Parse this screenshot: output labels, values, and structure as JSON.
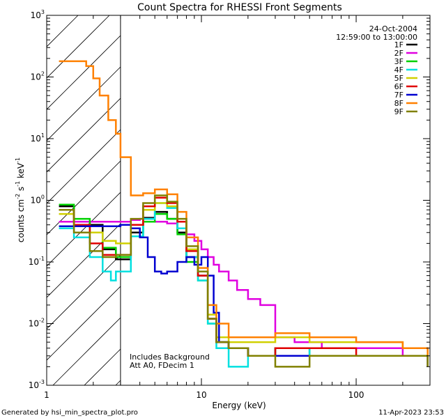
{
  "chart_data": {
    "type": "line",
    "title": "Count Spectra for RHESSI Front Segments",
    "xlabel": "Energy (keV)",
    "ylabel_parts": [
      "counts cm",
      "-2",
      " s",
      "-1",
      " keV",
      "-1"
    ],
    "xscale": "log",
    "yscale": "log",
    "xlim": [
      1,
      300
    ],
    "ylim": [
      0.001,
      1000
    ],
    "x_ticks": [
      {
        "v": 1,
        "label": "1"
      },
      {
        "v": 10,
        "label": "10"
      },
      {
        "v": 100,
        "label": "100"
      }
    ],
    "y_ticks": [
      {
        "v": 0.001,
        "base": "10",
        "exp": "-3"
      },
      {
        "v": 0.01,
        "base": "10",
        "exp": "-2"
      },
      {
        "v": 0.1,
        "base": "10",
        "exp": "-1"
      },
      {
        "v": 1,
        "base": "10",
        "exp": "0"
      },
      {
        "v": 10,
        "base": "10",
        "exp": "1"
      },
      {
        "v": 100,
        "base": "10",
        "exp": "2"
      },
      {
        "v": 1000,
        "base": "10",
        "exp": "3"
      }
    ],
    "hatched_region": {
      "x_from": 1,
      "x_to": 3
    },
    "legend": {
      "position": "top-right",
      "date": "24-Oct-2004",
      "time_range": "12:59:00 to 13:00:00"
    },
    "annotations": [
      "Includes Background",
      "Att A0, FDecim 1"
    ],
    "series": [
      {
        "name": "1F",
        "color": "#000000",
        "x": [
          1.2,
          1.5,
          1.9,
          2.3,
          2.8,
          3.5,
          4.2,
          5,
          6,
          7,
          8,
          9.5,
          11,
          12.5,
          15,
          20,
          30,
          50,
          100,
          200,
          290
        ],
        "y": [
          0.8,
          0.45,
          0.4,
          0.16,
          0.11,
          0.3,
          0.52,
          0.65,
          0.5,
          0.3,
          0.12,
          0.06,
          0.012,
          0.005,
          0.004,
          0.003,
          0.004,
          0.003,
          0.003,
          0.003,
          0.002
        ]
      },
      {
        "name": "2F",
        "color": "#e000e0",
        "x": [
          1.2,
          1.6,
          2,
          2.5,
          3,
          3.5,
          4,
          5,
          6,
          7,
          8,
          9,
          10,
          11,
          12,
          13,
          15,
          17,
          20,
          24,
          30,
          40,
          60,
          100,
          200,
          290
        ],
        "y": [
          0.45,
          0.45,
          0.45,
          0.45,
          0.45,
          0.48,
          0.5,
          0.45,
          0.42,
          0.35,
          0.28,
          0.22,
          0.16,
          0.12,
          0.09,
          0.07,
          0.05,
          0.035,
          0.025,
          0.02,
          0.006,
          0.005,
          0.004,
          0.004,
          0.003,
          0.002
        ]
      },
      {
        "name": "3F",
        "color": "#00d000",
        "x": [
          1.2,
          1.5,
          1.9,
          2.3,
          2.8,
          3.5,
          4.2,
          5,
          6,
          7,
          8,
          9.5,
          11,
          12.5,
          15,
          20,
          30,
          50,
          100,
          200,
          290
        ],
        "y": [
          0.85,
          0.5,
          0.3,
          0.17,
          0.12,
          0.26,
          0.45,
          0.6,
          0.5,
          0.28,
          0.1,
          0.05,
          0.01,
          0.005,
          0.004,
          0.003,
          0.004,
          0.003,
          0.003,
          0.003,
          0.002
        ]
      },
      {
        "name": "4F",
        "color": "#00e0e0",
        "x": [
          1.2,
          1.5,
          1.9,
          2.3,
          2.6,
          2.8,
          3.5,
          4.2,
          5,
          6,
          7,
          8,
          9.5,
          11,
          12.5,
          15,
          20,
          30,
          50,
          100,
          200,
          290
        ],
        "y": [
          0.35,
          0.25,
          0.12,
          0.07,
          0.05,
          0.07,
          0.26,
          0.5,
          0.9,
          0.75,
          0.35,
          0.12,
          0.05,
          0.01,
          0.004,
          0.002,
          0.003,
          0.004,
          0.003,
          0.003,
          0.003,
          0.002
        ]
      },
      {
        "name": "5F",
        "color": "#d0d000",
        "x": [
          1.2,
          1.5,
          1.9,
          2.3,
          2.8,
          3.5,
          4.2,
          5,
          6,
          7,
          8,
          9.5,
          11,
          12.5,
          15,
          20,
          30,
          50,
          100,
          200,
          290
        ],
        "y": [
          0.6,
          0.4,
          0.3,
          0.22,
          0.2,
          0.4,
          0.7,
          0.9,
          0.8,
          0.45,
          0.16,
          0.07,
          0.014,
          0.006,
          0.005,
          0.005,
          0.006,
          0.005,
          0.005,
          0.004,
          0.003
        ]
      },
      {
        "name": "6F",
        "color": "#e00000",
        "x": [
          1.2,
          1.5,
          1.9,
          2.3,
          2.8,
          3.5,
          4.2,
          5,
          6,
          7,
          8,
          9.5,
          11,
          12.5,
          15,
          20,
          30,
          50,
          100,
          200,
          290
        ],
        "y": [
          0.7,
          0.4,
          0.2,
          0.13,
          0.13,
          0.4,
          0.8,
          1.1,
          0.9,
          0.45,
          0.15,
          0.06,
          0.012,
          0.005,
          0.004,
          0.003,
          0.004,
          0.004,
          0.003,
          0.003,
          0.002
        ]
      },
      {
        "name": "7F",
        "color": "#0000d0",
        "x": [
          1.2,
          1.5,
          2,
          2.5,
          3,
          3.5,
          4,
          4.5,
          5,
          5.5,
          6,
          7,
          8,
          9,
          10,
          11,
          12,
          13,
          15,
          20,
          30,
          50,
          100,
          200,
          290
        ],
        "y": [
          0.38,
          0.38,
          0.38,
          0.38,
          0.4,
          0.35,
          0.25,
          0.12,
          0.07,
          0.065,
          0.07,
          0.1,
          0.12,
          0.09,
          0.12,
          0.06,
          0.015,
          0.005,
          0.004,
          0.003,
          0.003,
          0.003,
          0.003,
          0.003,
          0.002
        ]
      },
      {
        "name": "8F",
        "color": "#ff8000",
        "x": [
          1.2,
          1.6,
          1.8,
          2,
          2.2,
          2.5,
          2.8,
          3,
          3.5,
          4.2,
          5,
          6,
          7,
          8,
          9.5,
          11,
          12.5,
          15,
          20,
          30,
          50,
          100,
          200,
          290
        ],
        "y": [
          180,
          180,
          150,
          95,
          50,
          20,
          12,
          5,
          1.2,
          1.3,
          1.5,
          1.25,
          0.65,
          0.25,
          0.08,
          0.02,
          0.01,
          0.006,
          0.006,
          0.007,
          0.006,
          0.005,
          0.004,
          0.003
        ]
      },
      {
        "name": "9F",
        "color": "#808000",
        "x": [
          1.2,
          1.5,
          1.9,
          2.3,
          2.8,
          3.5,
          4.2,
          5,
          6,
          7,
          8,
          9.5,
          11,
          12.5,
          15,
          20,
          30,
          50,
          100,
          200,
          290
        ],
        "y": [
          0.7,
          0.3,
          0.15,
          0.12,
          0.13,
          0.5,
          0.9,
          1.2,
          0.95,
          0.5,
          0.18,
          0.07,
          0.012,
          0.005,
          0.004,
          0.003,
          0.002,
          0.003,
          0.003,
          0.003,
          0.002
        ]
      }
    ]
  },
  "footer": {
    "generated_by": "Generated by hsi_min_spectra_plot.pro",
    "timestamp": "11-Apr-2023 23:53"
  }
}
